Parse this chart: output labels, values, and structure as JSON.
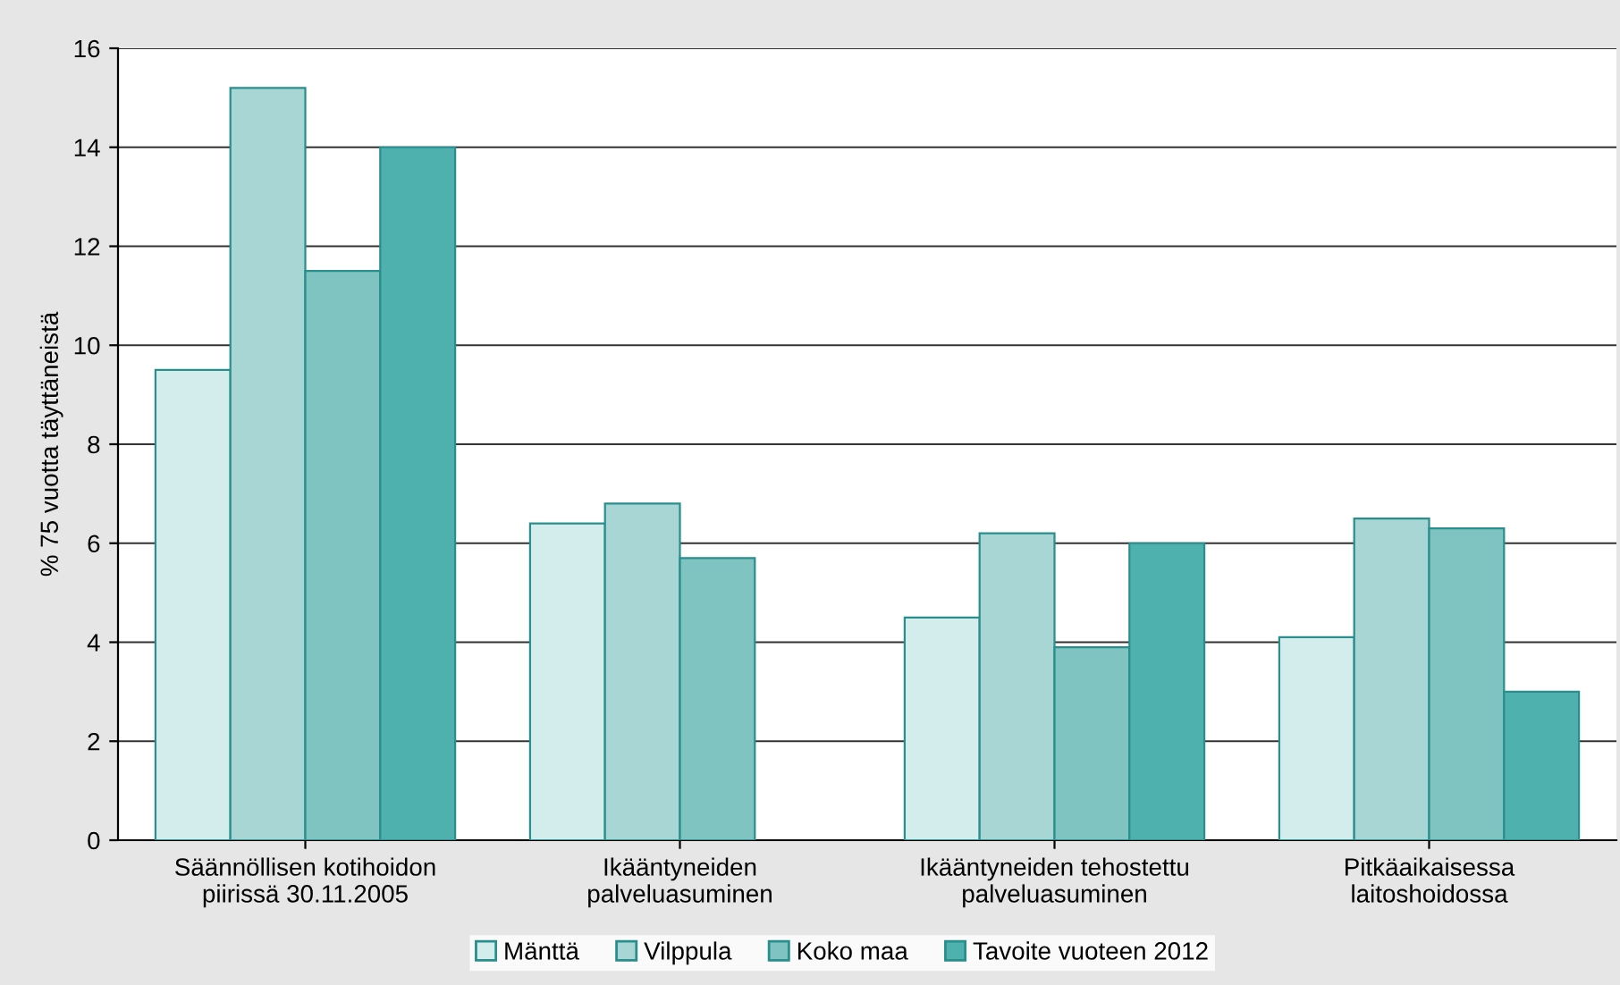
{
  "chart_data": {
    "type": "bar",
    "ylabel": "% 75 vuotta täyttäneistä",
    "categories": [
      "Säännöllisen kotihoidon\npiirissä 30.11.2005",
      "Ikääntyneiden\npalveluasuminen",
      "Ikääntyneiden tehostettu\npalveluasuminen",
      "Pitkäaikaisessa\nlaitoshoidossa"
    ],
    "series": [
      {
        "name": "Mänttä",
        "color": "#d3ecec",
        "values": [
          9.5,
          6.4,
          4.5,
          4.1
        ]
      },
      {
        "name": "Vilppula",
        "color": "#a8d6d4",
        "values": [
          15.2,
          6.8,
          6.2,
          6.5
        ]
      },
      {
        "name": "Koko maa",
        "color": "#7fc4c1",
        "values": [
          11.5,
          5.7,
          3.9,
          6.3
        ]
      },
      {
        "name": "Tavoite vuoteen 2012",
        "color": "#4fb1ae",
        "values": [
          14.0,
          null,
          6.0,
          3.0
        ]
      }
    ],
    "ylim": [
      0,
      16
    ],
    "yticks": [
      0,
      2,
      4,
      6,
      8,
      10,
      12,
      14,
      16
    ],
    "grid": "y",
    "legend": "bottom"
  }
}
